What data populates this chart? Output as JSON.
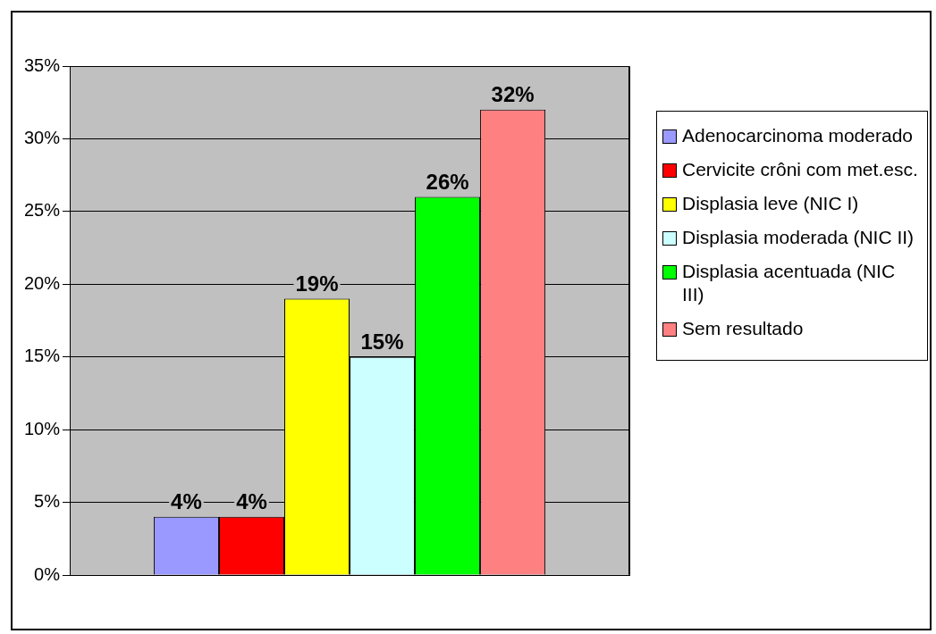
{
  "chart_data": {
    "type": "bar",
    "categories": [
      null
    ],
    "series": [
      {
        "name": "Adenocarcinoma moderado",
        "color": "#9999ff",
        "values": [
          4
        ]
      },
      {
        "name": "Cervicite crôni com met.esc.",
        "color": "#ff0000",
        "values": [
          4
        ]
      },
      {
        "name": "Displasia leve (NIC I)",
        "color": "#ffff00",
        "values": [
          19
        ]
      },
      {
        "name": "Displasia moderada (NIC II)",
        "color": "#ccffff",
        "values": [
          15
        ]
      },
      {
        "name": "Displasia acentuada (NIC III)",
        "color": "#00ff00",
        "values": [
          26
        ]
      },
      {
        "name": "Sem resultado",
        "color": "#ff8080",
        "values": [
          32
        ]
      }
    ],
    "ylim": [
      0,
      35
    ],
    "yticks": [
      {
        "value": 0,
        "label": "0%"
      },
      {
        "value": 5,
        "label": "5%"
      },
      {
        "value": 10,
        "label": "10%"
      },
      {
        "value": 15,
        "label": "15%"
      },
      {
        "value": 20,
        "label": "20%"
      },
      {
        "value": 25,
        "label": "25%"
      },
      {
        "value": 30,
        "label": "30%"
      },
      {
        "value": 35,
        "label": "35%"
      }
    ],
    "value_labels": [
      "4%",
      "4%",
      "19%",
      "15%",
      "26%",
      "32%"
    ],
    "grid": "y",
    "legend": "right"
  }
}
